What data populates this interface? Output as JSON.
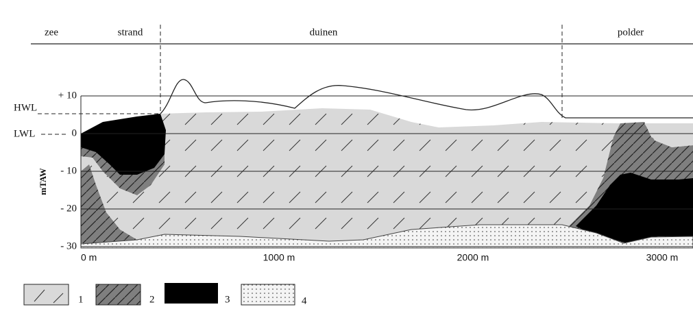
{
  "zones": [
    "zee",
    "strand",
    "duinen",
    "polder"
  ],
  "reference_levels": [
    "HWL",
    "LWL"
  ],
  "y_axis": {
    "label": "mTAW",
    "ticks": [
      "+ 10",
      "0",
      "- 10",
      "- 20",
      "- 30"
    ]
  },
  "x_axis": {
    "ticks": [
      "0 m",
      "1000 m",
      "2000 m",
      "3000 m"
    ]
  },
  "legend": [
    "1",
    "2",
    "3",
    "4"
  ]
}
